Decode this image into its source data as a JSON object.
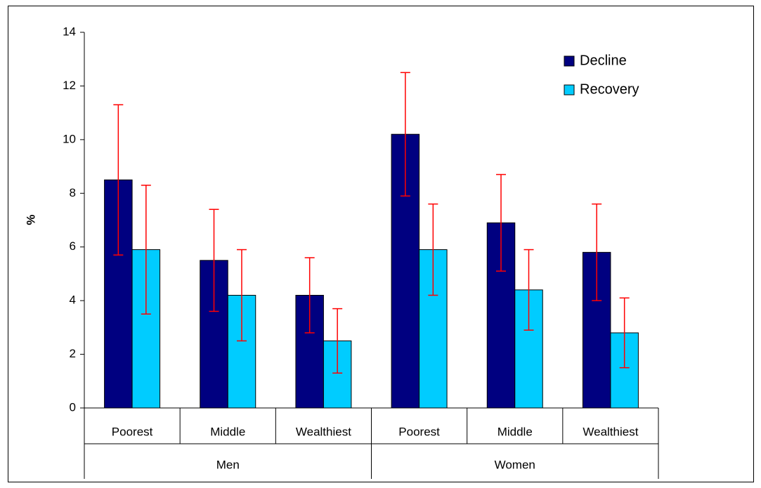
{
  "chart_data": {
    "type": "bar",
    "y_label": "%",
    "groups": [
      {
        "name": "Men",
        "categories": [
          "Poorest",
          "Middle",
          "Wealthiest"
        ]
      },
      {
        "name": "Women",
        "categories": [
          "Poorest",
          "Middle",
          "Wealthiest"
        ]
      }
    ],
    "series": [
      {
        "name": "Decline",
        "color": "#000080",
        "values": [
          8.5,
          5.5,
          4.2,
          10.2,
          6.9,
          5.8
        ],
        "errors": [
          2.8,
          1.9,
          1.4,
          2.3,
          1.8,
          1.8
        ]
      },
      {
        "name": "Recovery",
        "color": "#00ccff",
        "values": [
          5.9,
          4.2,
          2.5,
          5.9,
          4.4,
          2.8
        ],
        "errors": [
          2.4,
          1.7,
          1.2,
          1.7,
          1.5,
          1.3
        ]
      }
    ],
    "error_color": "#ff0000",
    "ylim": [
      0,
      14
    ],
    "yticks": [
      0,
      2,
      4,
      6,
      8,
      10,
      12,
      14
    ],
    "grid": false,
    "legend": "top-right"
  }
}
